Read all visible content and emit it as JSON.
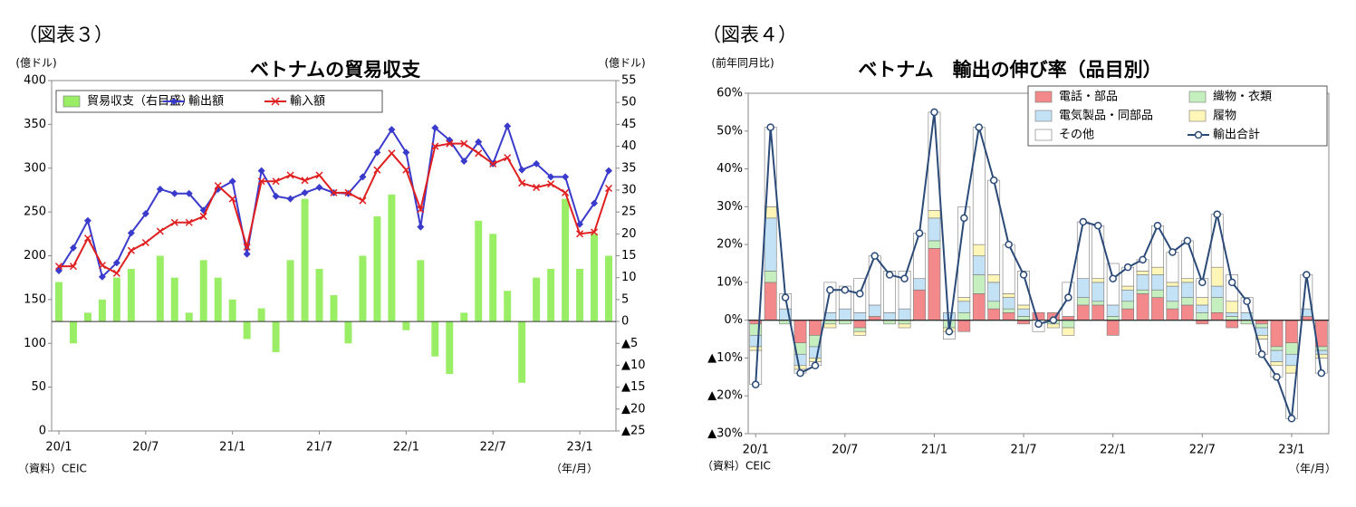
{
  "chart_data": [
    {
      "type": "bar_line",
      "figure_label": "（図表３）",
      "title": "ベトナムの貿易収支",
      "ylabel": "(億ドル)",
      "y2label": "(億ドル)",
      "source": "（資料）CEIC",
      "xlabel": "（年/月）",
      "categories": [
        "20/1",
        null,
        null,
        null,
        null,
        null,
        "20/7",
        null,
        null,
        null,
        null,
        null,
        "21/1",
        null,
        null,
        null,
        null,
        null,
        "21/7",
        null,
        null,
        null,
        null,
        null,
        "22/1",
        null,
        null,
        null,
        null,
        null,
        "22/7",
        null,
        null,
        null,
        null,
        null,
        "23/1",
        null,
        null
      ],
      "ylim": [
        0,
        400
      ],
      "yticks": [
        0,
        50,
        100,
        150,
        200,
        250,
        300,
        350,
        400
      ],
      "y2lim": [
        -25,
        55
      ],
      "y2ticks": [
        {
          "value": -25,
          "label": "▲25"
        },
        {
          "value": -20,
          "label": "▲20"
        },
        {
          "value": -15,
          "label": "▲15"
        },
        {
          "value": -10,
          "label": "▲10"
        },
        {
          "value": -5,
          "label": "▲5"
        },
        0,
        5,
        10,
        15,
        20,
        25,
        30,
        35,
        40,
        45,
        50,
        55
      ],
      "legend": "upper left",
      "series": [
        {
          "name": "貿易収支（右目盛）",
          "type": "bar",
          "axis": "y2",
          "color": "#99ee66",
          "values": [
            9,
            -5,
            2,
            5,
            10,
            12,
            0,
            15,
            10,
            2,
            14,
            10,
            5,
            -4,
            3,
            -7,
            14,
            28,
            12,
            6,
            -5,
            15,
            24,
            29,
            -2,
            14,
            -8,
            -12,
            2,
            23,
            20,
            7,
            -14,
            10,
            12,
            28,
            12,
            20,
            15
          ]
        },
        {
          "name": "輸出額",
          "type": "line",
          "marker": "diamond",
          "color": "#3a3acc",
          "values": [
            183,
            209,
            240,
            176,
            192,
            226,
            248,
            276,
            271,
            271,
            252,
            276,
            285,
            202,
            297,
            268,
            265,
            272,
            278,
            272,
            271,
            290,
            318,
            344,
            318,
            233,
            346,
            332,
            308,
            330,
            305,
            348,
            298,
            305,
            290,
            290,
            236,
            260,
            297
          ]
        },
        {
          "name": "輸入額",
          "type": "line",
          "marker": "x",
          "color": "#e02020",
          "values": [
            188,
            188,
            220,
            189,
            180,
            206,
            215,
            228,
            238,
            238,
            245,
            280,
            265,
            210,
            285,
            285,
            292,
            286,
            292,
            272,
            272,
            263,
            298,
            317,
            298,
            253,
            325,
            328,
            328,
            317,
            305,
            312,
            283,
            278,
            282,
            272,
            225,
            227,
            277
          ]
        }
      ]
    },
    {
      "type": "stacked_bar_line",
      "figure_label": "（図表４）",
      "title": "ベトナム　輸出の伸び率（品目別）",
      "ylabel": "(前年同月比)",
      "source": "（資料）CEIC",
      "xlabel": "（年/月）",
      "categories": [
        "20/1",
        null,
        null,
        null,
        null,
        null,
        "20/7",
        null,
        null,
        null,
        null,
        null,
        "21/1",
        null,
        null,
        null,
        null,
        null,
        "21/7",
        null,
        null,
        null,
        null,
        null,
        "22/1",
        null,
        null,
        null,
        null,
        null,
        "22/7",
        null,
        null,
        null,
        null,
        null,
        "23/1",
        null,
        null
      ],
      "ylim": [
        -30,
        60
      ],
      "yticks": [
        {
          "value": -30,
          "label": "▲30%"
        },
        {
          "value": -20,
          "label": "▲20%"
        },
        {
          "value": -10,
          "label": "▲10%"
        },
        {
          "value": 0,
          "label": "0%"
        },
        {
          "value": 10,
          "label": "10%"
        },
        {
          "value": 20,
          "label": "20%"
        },
        {
          "value": 30,
          "label": "30%"
        },
        {
          "value": 40,
          "label": "40%"
        },
        {
          "value": 50,
          "label": "50%"
        },
        {
          "value": 60,
          "label": "60%"
        }
      ],
      "legend": "upper right",
      "series": [
        {
          "name": "電話・部品",
          "type": "bar",
          "color": "#f4898b",
          "values": [
            -1,
            10,
            0,
            -6,
            -4,
            0,
            0,
            -2,
            1,
            0,
            0,
            8,
            19,
            0,
            -3,
            7,
            3,
            2,
            -1,
            2,
            2,
            1,
            4,
            4,
            -4,
            3,
            7,
            6,
            3,
            4,
            -1,
            2,
            -2,
            0,
            -1,
            -7,
            -6,
            1,
            -7
          ]
        },
        {
          "name": "織物・衣類",
          "type": "bar",
          "color": "#c6efc0",
          "values": [
            -3,
            3,
            -1,
            -3,
            -3,
            -1,
            -1,
            -1,
            0,
            -1,
            -1,
            0,
            2,
            -2,
            2,
            5,
            2,
            1,
            1,
            0,
            -1,
            -2,
            2,
            1,
            1,
            2,
            1,
            2,
            2,
            2,
            2,
            4,
            1,
            -1,
            -1,
            -1,
            -3,
            0,
            -1
          ]
        },
        {
          "name": "電気製品・同部品",
          "type": "bar",
          "color": "#c3e2f5",
          "values": [
            -3,
            14,
            3,
            -3,
            -3,
            2,
            3,
            2,
            3,
            2,
            3,
            3,
            6,
            2,
            3,
            5,
            5,
            3,
            2,
            0,
            0,
            0,
            5,
            5,
            3,
            3,
            4,
            4,
            4,
            4,
            2,
            3,
            1,
            2,
            -2,
            -3,
            -3,
            2,
            -1
          ]
        },
        {
          "name": "履物",
          "type": "bar",
          "color": "#fff6b8",
          "values": [
            -1,
            3,
            0,
            -1,
            -1,
            -1,
            0,
            -1,
            0,
            0,
            -1,
            0,
            2,
            -1,
            1,
            3,
            2,
            1,
            1,
            0,
            -1,
            -2,
            0,
            1,
            0,
            1,
            1,
            2,
            1,
            1,
            2,
            5,
            3,
            0,
            -1,
            -1,
            -2,
            0,
            -1
          ]
        },
        {
          "name": "その他",
          "type": "bar",
          "color": "#ffffff",
          "values": [
            -9,
            21,
            4,
            -1,
            -1,
            8,
            6,
            9,
            13,
            11,
            10,
            12,
            26,
            -2,
            24,
            31,
            25,
            13,
            9,
            -3,
            0,
            9,
            15,
            14,
            11,
            5,
            3,
            11,
            8,
            10,
            5,
            14,
            7,
            4,
            -4,
            -3,
            -12,
            9,
            -4
          ]
        },
        {
          "name": "輸出合計",
          "type": "line",
          "marker": "circle",
          "color": "#2b4a78",
          "values": [
            -17,
            51,
            6,
            -14,
            -12,
            8,
            8,
            7,
            17,
            12,
            11,
            23,
            55,
            -3,
            27,
            51,
            37,
            20,
            12,
            -1,
            0,
            6,
            26,
            25,
            11,
            14,
            16,
            25,
            18,
            21,
            10,
            28,
            10,
            5,
            -9,
            -15,
            -26,
            12,
            -14
          ]
        }
      ]
    }
  ]
}
